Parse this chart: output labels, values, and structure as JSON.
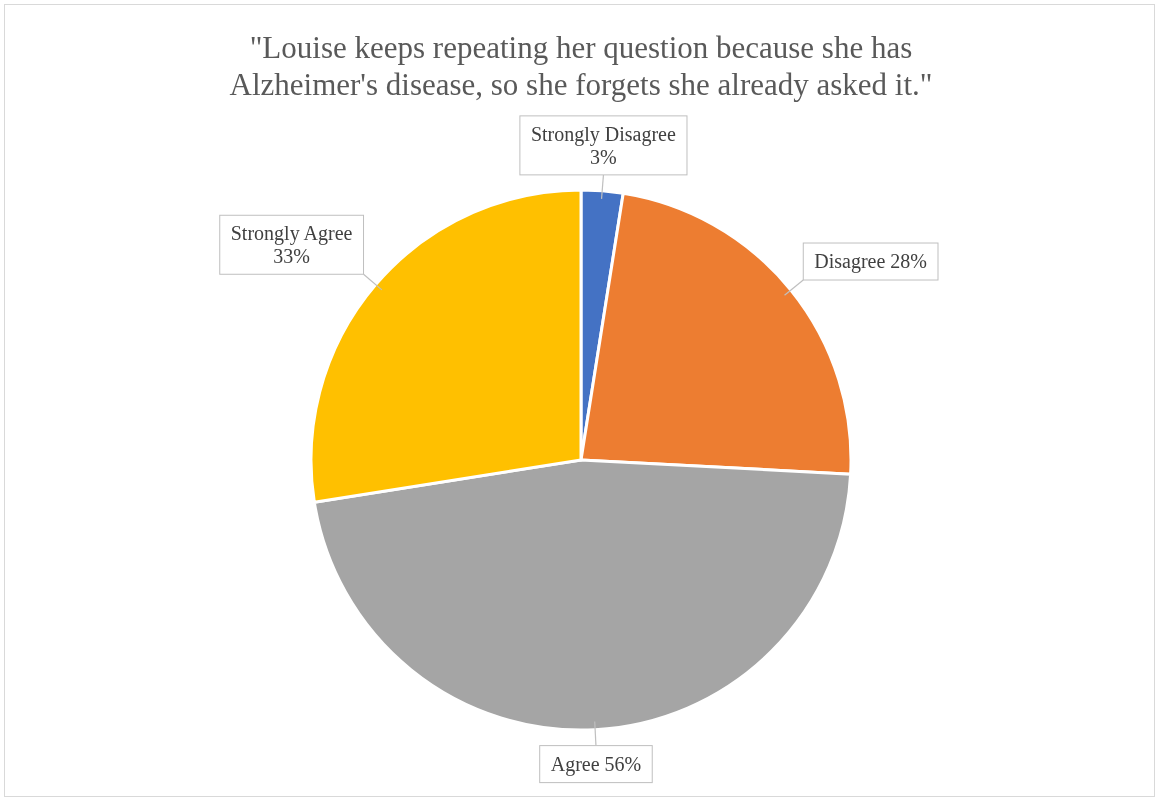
{
  "chart_data": {
    "type": "pie",
    "title": "\"Louise keeps repeating her question because she has Alzheimer's disease, so she forgets she already asked it.\"",
    "categories": [
      "Strongly Disagree",
      "Disagree",
      "Agree",
      "Strongly Agree"
    ],
    "values": [
      3,
      28,
      56,
      33
    ],
    "value_labels": [
      "3%",
      "28%",
      "56%",
      "33%"
    ],
    "colors": [
      "#4472c4",
      "#ed7d31",
      "#a5a5a5",
      "#ffc000"
    ],
    "legend": false
  }
}
